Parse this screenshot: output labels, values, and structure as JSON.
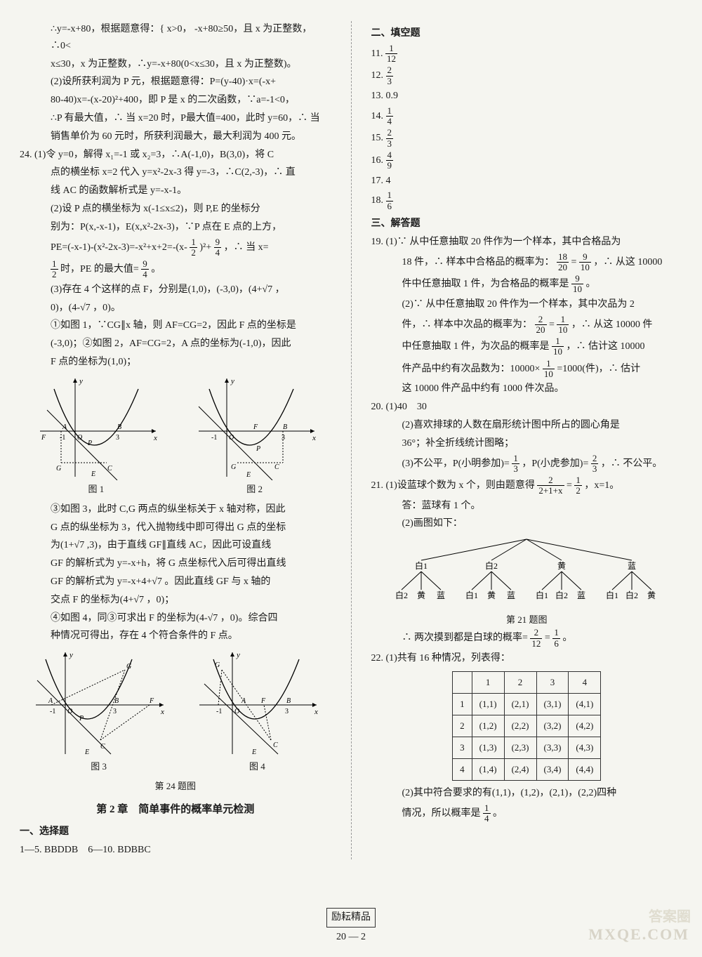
{
  "left": {
    "p1": "∴y=-x+80，根据题意得：{ x>0， -x+80≥50，且 x 为正整数，∴0<",
    "p2": "x≤30，x 为正整数，∴y=-x+80(0<x≤30，且 x 为正整数)。",
    "p3": "(2)设所获利润为 P 元，根据题意得：P=(y-40)·x=(-x+",
    "p4": "80-40)x=-(x-20)²+400，即 P 是 x 的二次函数，∵a=-1<0，",
    "p5": "∴P 有最大值，∴ 当 x=20 时，P最大值=400，此时 y=60，∴ 当",
    "p6": "销售单价为 60 元时，所获利润最大，最大利润为 400 元。",
    "q24a": "24.  (1)令 y=0，解得 x₁=-1 或 x₂=3，∴A(-1,0)，B(3,0)，将 C",
    "q24b": "点的横坐标 x=2 代入 y=x²-2x-3 得 y=-3，∴C(2,-3)，∴ 直",
    "q24c": "线 AC 的函数解析式是 y=-x-1。",
    "q24d": "(2)设 P 点的横坐标为 x(-1≤x≤2)，则 P,E 的坐标分",
    "q24e": "别为：P(x,-x-1)，E(x,x²-2x-3)，∵P 点在 E 点的上方，",
    "q24f_pre": "PE=(-x-1)-(x²-2x-3)=-x²+x+2=-(x- ",
    "q24f_after": ")²+ ",
    "q24f_end": "，∴ 当 x=",
    "q24g_pre": " 时，PE 的最大值= ",
    "q24g_end": "。",
    "q24h": "(3)存在 4 个这样的点 F，分别是(1,0)，(-3,0)，(4+√7 ，",
    "q24i": "0)，(4-√7 ，0)。",
    "q24j": "①如图 1，∵CG∥x 轴，则 AF=CG=2，因此 F 点的坐标是",
    "q24k": "(-3,0)；②如图 2，AF=CG=2，A 点的坐标为(-1,0)，因此",
    "q24l": "F 点的坐标为(1,0)；",
    "fig1_cap": "图 1",
    "fig2_cap": "图 2",
    "q24m": "③如图 3，此时 C,G 两点的纵坐标关于 x 轴对称，因此",
    "q24n": "G 点的纵坐标为 3，代入抛物线中即可得出 G 点的坐标",
    "q24o": "为(1+√7 ,3)，由于直线 GF∥直线 AC，因此可设直线",
    "q24p": "GF 的解析式为 y=-x+h，将 G 点坐标代入后可得出直线",
    "q24q": "GF 的解析式为 y=-x+4+√7 。因此直线 GF 与 x 轴的",
    "q24r": "交点 F 的坐标为(4+√7 ，0)；",
    "q24s": "④如图 4，同③可求出 F 的坐标为(4-√7 ，0)。综合四",
    "q24t": "种情况可得出，存在 4 个符合条件的 F 点。",
    "fig3_cap": "图 3",
    "fig4_cap": "图 4",
    "fig24_title": "第 24 题图",
    "chapter": "第 2 章　简单事件的概率单元检测",
    "sel_title": "一、选择题",
    "sel_ans": "1—5.  BBDDB　6—10.  BDBBC"
  },
  "right": {
    "fill_title": "二、填空题",
    "q11": "11.",
    "q12": "12.",
    "q13": "13.  0.9",
    "q14": "14.",
    "q15": "15.",
    "q16": "16.",
    "q17": "17.  4",
    "q18": "18.",
    "solve_title": "三、解答题",
    "q19a": "19.  (1)∵ 从中任意抽取 20 件作为一个样本，其中合格品为",
    "q19b_pre": "18 件，∴ 样本中合格品的概率为：",
    "q19b_mid": " = ",
    "q19b_end": "，∴ 从这 10000",
    "q19c_pre": "件中任意抽取 1 件，为合格品的概率是 ",
    "q19c_end": "。",
    "q19d": "(2)∵ 从中任意抽取 20 件作为一个样本，其中次品为 2",
    "q19e_pre": "件，∴ 样本中次品的概率为：",
    "q19e_mid": " = ",
    "q19e_end": "，∴ 从这 10000 件",
    "q19f_pre": "中任意抽取 1 件，为次品的概率是 ",
    "q19f_end": "，∴ 估计这 10000",
    "q19g_pre": "件产品中约有次品数为：10000× ",
    "q19g_end": " =1000(件)，∴ 估计",
    "q19h": "这 10000 件产品中约有 1000 件次品。",
    "q20a": "20.  (1)40　30",
    "q20b": "(2)喜欢排球的人数在扇形统计图中所占的圆心角是",
    "q20c": "36°；补全折线统计图略；",
    "q20d_pre": "(3)不公平，P(小明参加)= ",
    "q20d_mid": "，P(小虎参加)= ",
    "q20d_end": "，∴ 不公平。",
    "q21a_pre": "21.  (1)设蓝球个数为 x 个，则由题意得 ",
    "q21a_mid": " = ",
    "q21a_end": "，x=1。",
    "q21b": "答：蓝球有 1 个。",
    "q21c": "(2)画图如下：",
    "tree_nodes": [
      "白1",
      "白2",
      "黄",
      "蓝"
    ],
    "tree_leaves": [
      [
        "白2",
        "黄",
        "蓝"
      ],
      [
        "白1",
        "黄",
        "蓝"
      ],
      [
        "白1",
        "白2",
        "蓝"
      ],
      [
        "白1",
        "白2",
        "黄"
      ]
    ],
    "fig21_title": "第 21 题图",
    "q21d_pre": "∴ 两次摸到都是白球的概率= ",
    "q21d_mid": " = ",
    "q21d_end": "。",
    "q22a": "22.  (1)共有 16 种情况，列表得：",
    "table": {
      "headers": [
        "",
        "1",
        "2",
        "3",
        "4"
      ],
      "rows": [
        [
          "1",
          "(1,1)",
          "(2,1)",
          "(3,1)",
          "(4,1)"
        ],
        [
          "2",
          "(1,2)",
          "(2,2)",
          "(3,2)",
          "(4,2)"
        ],
        [
          "3",
          "(1,3)",
          "(2,3)",
          "(3,3)",
          "(4,3)"
        ],
        [
          "4",
          "(1,4)",
          "(2,4)",
          "(3,4)",
          "(4,4)"
        ]
      ]
    },
    "q22b": "(2)其中符合要求的有(1,1)，(1,2)，(2,1)，(2,2)四种",
    "q22c_pre": "情况，所以概率是 ",
    "q22c_end": "。"
  },
  "fractions": {
    "half": {
      "n": "1",
      "d": "2"
    },
    "nine4": {
      "n": "9",
      "d": "4"
    },
    "one12": {
      "n": "1",
      "d": "12"
    },
    "two3": {
      "n": "2",
      "d": "3"
    },
    "one4": {
      "n": "1",
      "d": "4"
    },
    "four9": {
      "n": "4",
      "d": "9"
    },
    "one6": {
      "n": "1",
      "d": "6"
    },
    "eighteen20": {
      "n": "18",
      "d": "20"
    },
    "nine10": {
      "n": "9",
      "d": "10"
    },
    "two20": {
      "n": "2",
      "d": "20"
    },
    "one10": {
      "n": "1",
      "d": "10"
    },
    "one3": {
      "n": "1",
      "d": "3"
    },
    "two_over": {
      "n": "2",
      "d": "2+1+x"
    },
    "two12": {
      "n": "2",
      "d": "12"
    }
  },
  "footer": {
    "brand": "励耘精品",
    "page": "20 — 2"
  },
  "charts": {
    "parabola": {
      "type": "line",
      "xlim": [
        -2,
        4
      ],
      "ylim": [
        -4.5,
        4
      ],
      "curve_color": "#000000",
      "line_width": 1.2,
      "axis_color": "#000000",
      "dash_color": "#000000",
      "background": "#f5f5f0"
    }
  }
}
